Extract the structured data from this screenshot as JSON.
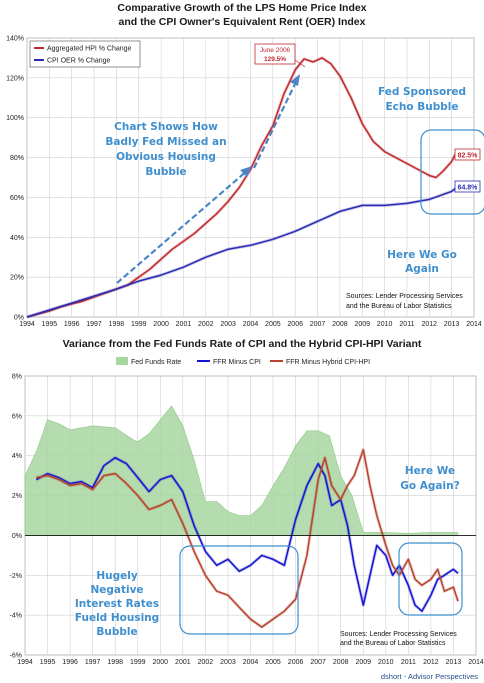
{
  "chart_data": [
    {
      "type": "line",
      "title_line1": "Comparative Growth of the LPS Home Price Index",
      "title_line2": "and the CPI Owner's Equivalent Rent (OER) Index",
      "x_ticks": [
        "1994",
        "1995",
        "1996",
        "1997",
        "1998",
        "1999",
        "2000",
        "2001",
        "2002",
        "2003",
        "2004",
        "2005",
        "2006",
        "2007",
        "2008",
        "2009",
        "2010",
        "2011",
        "2012",
        "2013",
        "2014"
      ],
      "y_ticks": [
        "0%",
        "20%",
        "40%",
        "60%",
        "80%",
        "100%",
        "120%",
        "140%"
      ],
      "xlim": [
        1994,
        2014
      ],
      "ylim": [
        0,
        140
      ],
      "grid": true,
      "legend_position": "top-left",
      "series": [
        {
          "name": "Aggregated HPI % Change",
          "color": "#c0282d",
          "x": [
            1994,
            1994.5,
            1995,
            1995.5,
            1996,
            1996.5,
            1997,
            1997.5,
            1998,
            1998.5,
            1999,
            1999.5,
            2000,
            2000.5,
            2001,
            2001.5,
            2002,
            2002.5,
            2003,
            2003.5,
            2004,
            2004.5,
            2005,
            2005.5,
            2006,
            2006.4,
            2006.8,
            2007.2,
            2007.6,
            2008,
            2008.5,
            2009,
            2009.5,
            2010,
            2010.5,
            2011,
            2011.5,
            2012,
            2012.3,
            2012.6,
            2013,
            2013.2
          ],
          "values": [
            0,
            1.5,
            3,
            5,
            6.5,
            8,
            10,
            12,
            14,
            16,
            20,
            24,
            29,
            34,
            38,
            42,
            47,
            52,
            58,
            65,
            74,
            86,
            96,
            112,
            124,
            129.5,
            128,
            130,
            127,
            121,
            110,
            97,
            88,
            83,
            80,
            77,
            74,
            71,
            70,
            73,
            78,
            82.5
          ]
        },
        {
          "name": "CPI OER % Change",
          "color": "#2b2bb5",
          "x": [
            1994,
            1995,
            1996,
            1997,
            1998,
            1999,
            2000,
            2001,
            2002,
            2003,
            2004,
            2005,
            2006,
            2007,
            2008,
            2009,
            2010,
            2011,
            2012,
            2013,
            2013.2
          ],
          "values": [
            0,
            3.5,
            7,
            10.5,
            14,
            18,
            21,
            25,
            30,
            34,
            36,
            39,
            43,
            48,
            53,
            56,
            56,
            57,
            59,
            63,
            64.8
          ]
        }
      ],
      "data_labels": [
        {
          "text": "82.5%",
          "x": 2013.2,
          "y": 82.5,
          "color": "#c0282d"
        },
        {
          "text": "64.8%",
          "x": 2013.2,
          "y": 64.8,
          "color": "#2b2bb5"
        }
      ],
      "callout": {
        "line1": "June 2006",
        "line2": "129.5%"
      },
      "annotations": {
        "left": [
          "Chart Shows How",
          "Badly Fed Missed an",
          "Obvious Housing",
          "Bubble"
        ],
        "right_top": [
          "Fed Sponsored",
          "Echo Bubble"
        ],
        "right_bottom": [
          "Here We Go",
          "Again"
        ],
        "sources": [
          "Sources: Lender Processing Services",
          "and the Bureau of Labor Statistics"
        ]
      }
    },
    {
      "type": "area",
      "title": "Variance from the Fed Funds Rate of CPI and the Hybrid CPI-HPI Variant",
      "x_ticks": [
        "1994",
        "1995",
        "1996",
        "1997",
        "1998",
        "1999",
        "2000",
        "2001",
        "2002",
        "2003",
        "2004",
        "2005",
        "2006",
        "2007",
        "2008",
        "2009",
        "2010",
        "2011",
        "2012",
        "2013",
        "2014"
      ],
      "y_ticks": [
        "-6%",
        "-4%",
        "-2%",
        "0%",
        "2%",
        "4%",
        "6%",
        "8%"
      ],
      "xlim": [
        1994,
        2014
      ],
      "ylim": [
        -6,
        8
      ],
      "grid": true,
      "legend_position": "top",
      "series": [
        {
          "name": "Fed Funds Rate",
          "color": "#a8d6a0",
          "x": [
            1994,
            1994.5,
            1995,
            1995.5,
            1996,
            1997,
            1998,
            1998.8,
            1999,
            1999.5,
            2000,
            2000.5,
            2001,
            2001.5,
            2002,
            2002.5,
            2003,
            2003.5,
            2004,
            2004.5,
            2005,
            2005.5,
            2006,
            2006.5,
            2007,
            2007.5,
            2008,
            2008.5,
            2009,
            2010,
            2011,
            2012,
            2013,
            2013.2
          ],
          "values": [
            3.0,
            4.2,
            5.8,
            5.6,
            5.3,
            5.5,
            5.4,
            4.8,
            4.7,
            5.1,
            5.8,
            6.5,
            5.5,
            3.8,
            1.7,
            1.7,
            1.2,
            1.0,
            1.0,
            1.5,
            2.5,
            3.4,
            4.5,
            5.25,
            5.25,
            5.0,
            3.0,
            2.0,
            0.15,
            0.15,
            0.1,
            0.15,
            0.15,
            0.15
          ]
        },
        {
          "name": "FFR Minus CPI",
          "color": "#1515d0",
          "x": [
            1994.5,
            1995,
            1995.5,
            1996,
            1996.5,
            1997,
            1997.5,
            1998,
            1998.5,
            1999,
            1999.5,
            2000,
            2000.5,
            2001,
            2001.5,
            2002,
            2002.5,
            2003,
            2003.5,
            2004,
            2004.5,
            2005,
            2005.5,
            2006,
            2006.5,
            2007,
            2007.3,
            2007.6,
            2008,
            2008.3,
            2008.6,
            2009,
            2009.3,
            2009.6,
            2010,
            2010.3,
            2010.6,
            2011,
            2011.3,
            2011.6,
            2012,
            2012.3,
            2012.6,
            2013,
            2013.2
          ],
          "values": [
            2.8,
            3.1,
            2.9,
            2.6,
            2.7,
            2.4,
            3.5,
            3.9,
            3.6,
            2.9,
            2.2,
            2.8,
            3.0,
            2.2,
            0.5,
            -0.8,
            -1.5,
            -1.2,
            -1.8,
            -1.5,
            -1.0,
            -1.2,
            -1.5,
            0.8,
            2.5,
            3.6,
            3.0,
            1.5,
            1.8,
            0.5,
            -1.5,
            -3.5,
            -2.0,
            -0.5,
            -1.0,
            -2.0,
            -1.5,
            -2.5,
            -3.5,
            -3.8,
            -3.0,
            -2.2,
            -2.0,
            -1.7,
            -1.9
          ]
        },
        {
          "name": "FFR Minus Hybrid CPI-HPI",
          "color": "#b8432e",
          "x": [
            1994.5,
            1995,
            1995.5,
            1996,
            1996.5,
            1997,
            1997.5,
            1998,
            1998.5,
            1999,
            1999.5,
            2000,
            2000.5,
            2001,
            2001.5,
            2002,
            2002.5,
            2003,
            2003.5,
            2004,
            2004.5,
            2005,
            2005.5,
            2006,
            2006.5,
            2007,
            2007.3,
            2007.6,
            2008,
            2008.3,
            2008.6,
            2009,
            2009.3,
            2009.6,
            2010,
            2010.3,
            2010.6,
            2011,
            2011.3,
            2011.6,
            2012,
            2012.3,
            2012.6,
            2013,
            2013.2
          ],
          "values": [
            2.9,
            3.0,
            2.8,
            2.5,
            2.6,
            2.3,
            3.0,
            3.1,
            2.6,
            2.0,
            1.3,
            1.5,
            1.8,
            0.6,
            -0.8,
            -2.0,
            -2.8,
            -3.0,
            -3.6,
            -4.2,
            -4.6,
            -4.2,
            -3.8,
            -3.2,
            -1.0,
            2.8,
            3.9,
            2.5,
            1.8,
            2.5,
            3.0,
            4.3,
            2.5,
            1.0,
            -0.5,
            -1.5,
            -2.0,
            -1.2,
            -2.2,
            -2.5,
            -2.2,
            -1.7,
            -2.8,
            -2.6,
            -3.3
          ]
        }
      ],
      "annotations": {
        "left": [
          "Hugely",
          "Negative",
          "Interest Rates",
          "Fueld Housing",
          "Bubble"
        ],
        "right": [
          "Here We",
          "Go Again?"
        ],
        "sources": [
          "Sources: Lender Processing Services",
          "and the Bureau of Labor Statistics"
        ]
      }
    }
  ],
  "footer": "dshort - Advisor Perspectives"
}
